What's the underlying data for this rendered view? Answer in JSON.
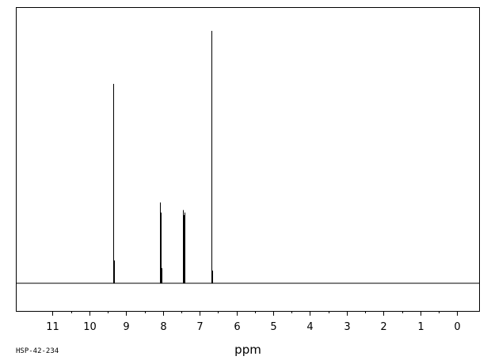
{
  "sample_id": "HSP-42-234",
  "chart_data": {
    "type": "line",
    "title": "",
    "xlabel": "ppm",
    "ylabel": "",
    "x_direction": "descending",
    "xlim": [
      12.0,
      -0.6
    ],
    "x_ticks": [
      11,
      10,
      9,
      8,
      7,
      6,
      5,
      4,
      3,
      2,
      1,
      0
    ],
    "x_tick_labels": [
      "11",
      "10",
      "9",
      "8",
      "7",
      "6",
      "5",
      "4",
      "3",
      "2",
      "1",
      "0"
    ],
    "minor_ticks": [
      10.5,
      9.5,
      8.5,
      7.5,
      6.5,
      5.5,
      4.5,
      3.5,
      2.5,
      1.5,
      0.5
    ],
    "ylim": [
      0,
      1.0
    ],
    "grid": false,
    "peaks": [
      {
        "ppm": 9.35,
        "height": 0.79
      },
      {
        "ppm": 9.33,
        "height": 0.09
      },
      {
        "ppm": 8.08,
        "height": 0.32
      },
      {
        "ppm": 8.06,
        "height": 0.28
      },
      {
        "ppm": 8.04,
        "height": 0.06
      },
      {
        "ppm": 7.45,
        "height": 0.29
      },
      {
        "ppm": 7.43,
        "height": 0.27
      },
      {
        "ppm": 7.41,
        "height": 0.28
      },
      {
        "ppm": 6.68,
        "height": 1.0
      },
      {
        "ppm": 6.66,
        "height": 0.05
      }
    ]
  }
}
